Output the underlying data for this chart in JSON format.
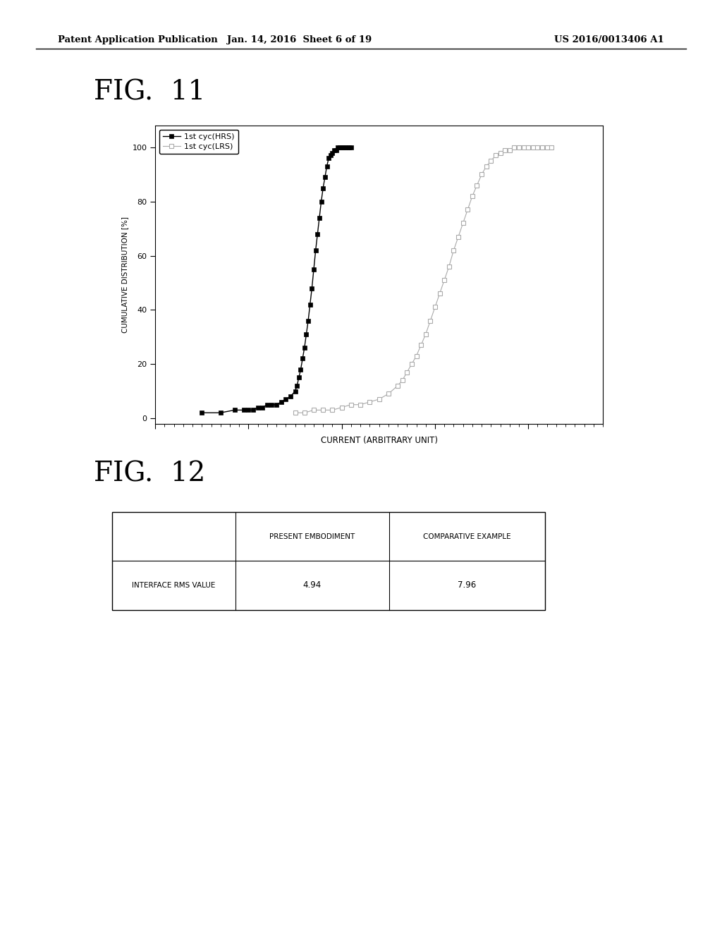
{
  "header_left": "Patent Application Publication",
  "header_center": "Jan. 14, 2016  Sheet 6 of 19",
  "header_right": "US 2016/0013406 A1",
  "fig11_label": "FIG.  11",
  "fig12_label": "FIG.  12",
  "ylabel": "CUMULATIVE DISTRIBUTION [%]",
  "xlabel": "CURRENT (ARBITRARY UNIT)",
  "legend_hrs": "1st cyc(HRS)",
  "legend_lrs": "1st cyc(LRS)",
  "ylim": [
    -2,
    108
  ],
  "yticks": [
    0,
    20,
    40,
    60,
    80,
    100
  ],
  "hrs_x": [
    0.5,
    0.7,
    0.85,
    0.95,
    1.0,
    1.05,
    1.1,
    1.15,
    1.2,
    1.25,
    1.3,
    1.35,
    1.4,
    1.45,
    1.5,
    1.52,
    1.54,
    1.56,
    1.58,
    1.6,
    1.62,
    1.64,
    1.66,
    1.68,
    1.7,
    1.72,
    1.74,
    1.76,
    1.78,
    1.8,
    1.82,
    1.84,
    1.86,
    1.88,
    1.9,
    1.92,
    1.94,
    1.96,
    1.98,
    2.0,
    2.02,
    2.04,
    2.06,
    2.08,
    2.1
  ],
  "hrs_y": [
    2,
    2,
    3,
    3,
    3,
    3,
    4,
    4,
    5,
    5,
    5,
    6,
    7,
    8,
    10,
    12,
    15,
    18,
    22,
    26,
    31,
    36,
    42,
    48,
    55,
    62,
    68,
    74,
    80,
    85,
    89,
    93,
    96,
    97,
    98,
    99,
    99,
    100,
    100,
    100,
    100,
    100,
    100,
    100,
    100
  ],
  "lrs_x": [
    1.5,
    1.6,
    1.7,
    1.8,
    1.9,
    2.0,
    2.1,
    2.2,
    2.3,
    2.4,
    2.5,
    2.6,
    2.65,
    2.7,
    2.75,
    2.8,
    2.85,
    2.9,
    2.95,
    3.0,
    3.05,
    3.1,
    3.15,
    3.2,
    3.25,
    3.3,
    3.35,
    3.4,
    3.45,
    3.5,
    3.55,
    3.6,
    3.65,
    3.7,
    3.75,
    3.8,
    3.85,
    3.9,
    3.95,
    4.0,
    4.05,
    4.1,
    4.15,
    4.2,
    4.25
  ],
  "lrs_y": [
    2,
    2,
    3,
    3,
    3,
    4,
    5,
    5,
    6,
    7,
    9,
    12,
    14,
    17,
    20,
    23,
    27,
    31,
    36,
    41,
    46,
    51,
    56,
    62,
    67,
    72,
    77,
    82,
    86,
    90,
    93,
    95,
    97,
    98,
    99,
    99,
    100,
    100,
    100,
    100,
    100,
    100,
    100,
    100,
    100
  ],
  "table_col1": "PRESENT EMBODIMENT",
  "table_col2": "COMPARATIVE EXAMPLE",
  "table_row_label": "INTERFACE RMS VALUE",
  "table_val1": "4.94",
  "table_val2": "7.96",
  "bg_color": "#ffffff",
  "line_color_hrs": "#000000",
  "line_color_lrs": "#aaaaaa",
  "header_fontsize": 9.5,
  "fig_label_fontsize": 28
}
